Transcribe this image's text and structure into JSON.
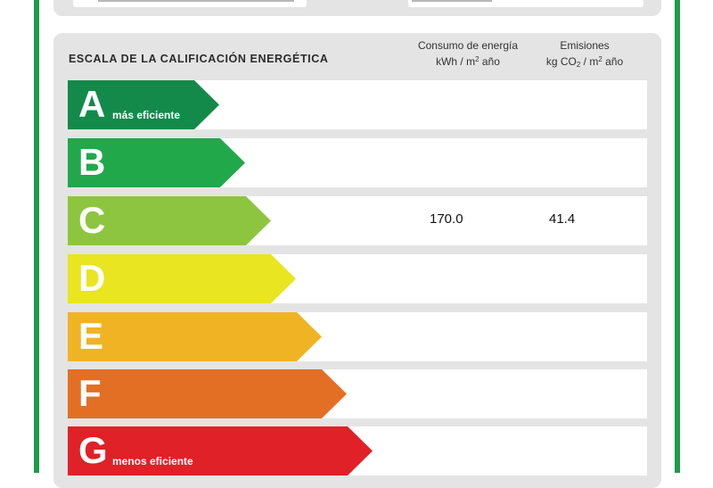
{
  "header": {
    "scale_title": "ESCALA DE LA CALIFICACIÓN ENERGÉTICA",
    "energy_col_line1": "Consumo de energía",
    "energy_col_unit_a": "kWh  / m",
    "energy_col_unit_exp": "2",
    "energy_col_unit_b": " año",
    "emis_col_line1": "Emisiones",
    "emis_col_unit_a": "kg CO",
    "emis_col_unit_sub": "2",
    "emis_col_unit_b": " / m",
    "emis_col_unit_exp": "2",
    "emis_col_unit_c": " año"
  },
  "ratings": [
    {
      "letter": "A",
      "caption": "más eficiente",
      "color": "#138a4a",
      "energy": "",
      "emissions": ""
    },
    {
      "letter": "B",
      "caption": "",
      "color": "#21a84b",
      "energy": "",
      "emissions": ""
    },
    {
      "letter": "C",
      "caption": "",
      "color": "#8dc540",
      "energy": "170.0",
      "emissions": "41.4"
    },
    {
      "letter": "D",
      "caption": "",
      "color": "#e9e520",
      "energy": "",
      "emissions": ""
    },
    {
      "letter": "E",
      "caption": "",
      "color": "#f0b323",
      "energy": "",
      "emissions": ""
    },
    {
      "letter": "F",
      "caption": "",
      "color": "#e36f25",
      "energy": "",
      "emissions": ""
    },
    {
      "letter": "G",
      "caption": "menos eficiente",
      "color": "#e02127",
      "energy": "",
      "emissions": ""
    }
  ],
  "colors": {
    "frame": "#1f9a4c",
    "panel": "#e4e4e4"
  }
}
